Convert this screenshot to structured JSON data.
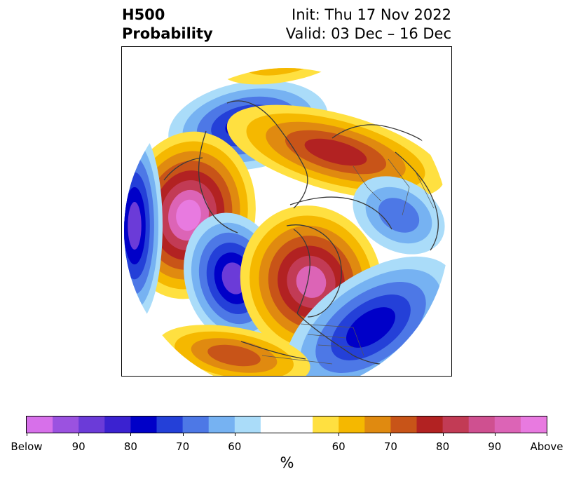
{
  "title": {
    "left_line1": "H500",
    "left_line2": "Probability",
    "right_line1": "Init: Thu 17 Nov 2022",
    "right_line2": "Valid: 03 Dec – 16 Dec"
  },
  "colorbar": {
    "unit": "%",
    "colors": [
      "#d770ea",
      "#9b52e0",
      "#6b3bd8",
      "#3b22d0",
      "#0000c8",
      "#2440d8",
      "#4d78e6",
      "#76b2f2",
      "#aadcf9",
      "#ffffff",
      "#ffe040",
      "#f5b800",
      "#e08a10",
      "#c85418",
      "#b22222",
      "#c23b55",
      "#cf5090",
      "#dc64b6",
      "#e87ae0"
    ],
    "tick_labels": [
      "Below",
      "90",
      "80",
      "70",
      "60",
      "60",
      "70",
      "80",
      "90",
      "Above"
    ]
  },
  "map": {
    "below_colors": [
      "#aadcf9",
      "#76b2f2",
      "#4d78e6",
      "#2440d8",
      "#0000c8",
      "#6b3bd8",
      "#d770ea"
    ],
    "above_colors": [
      "#ffe040",
      "#f5b800",
      "#e08a10",
      "#c85418",
      "#b22222",
      "#c23b55",
      "#dc64b6",
      "#e87ae0"
    ]
  }
}
